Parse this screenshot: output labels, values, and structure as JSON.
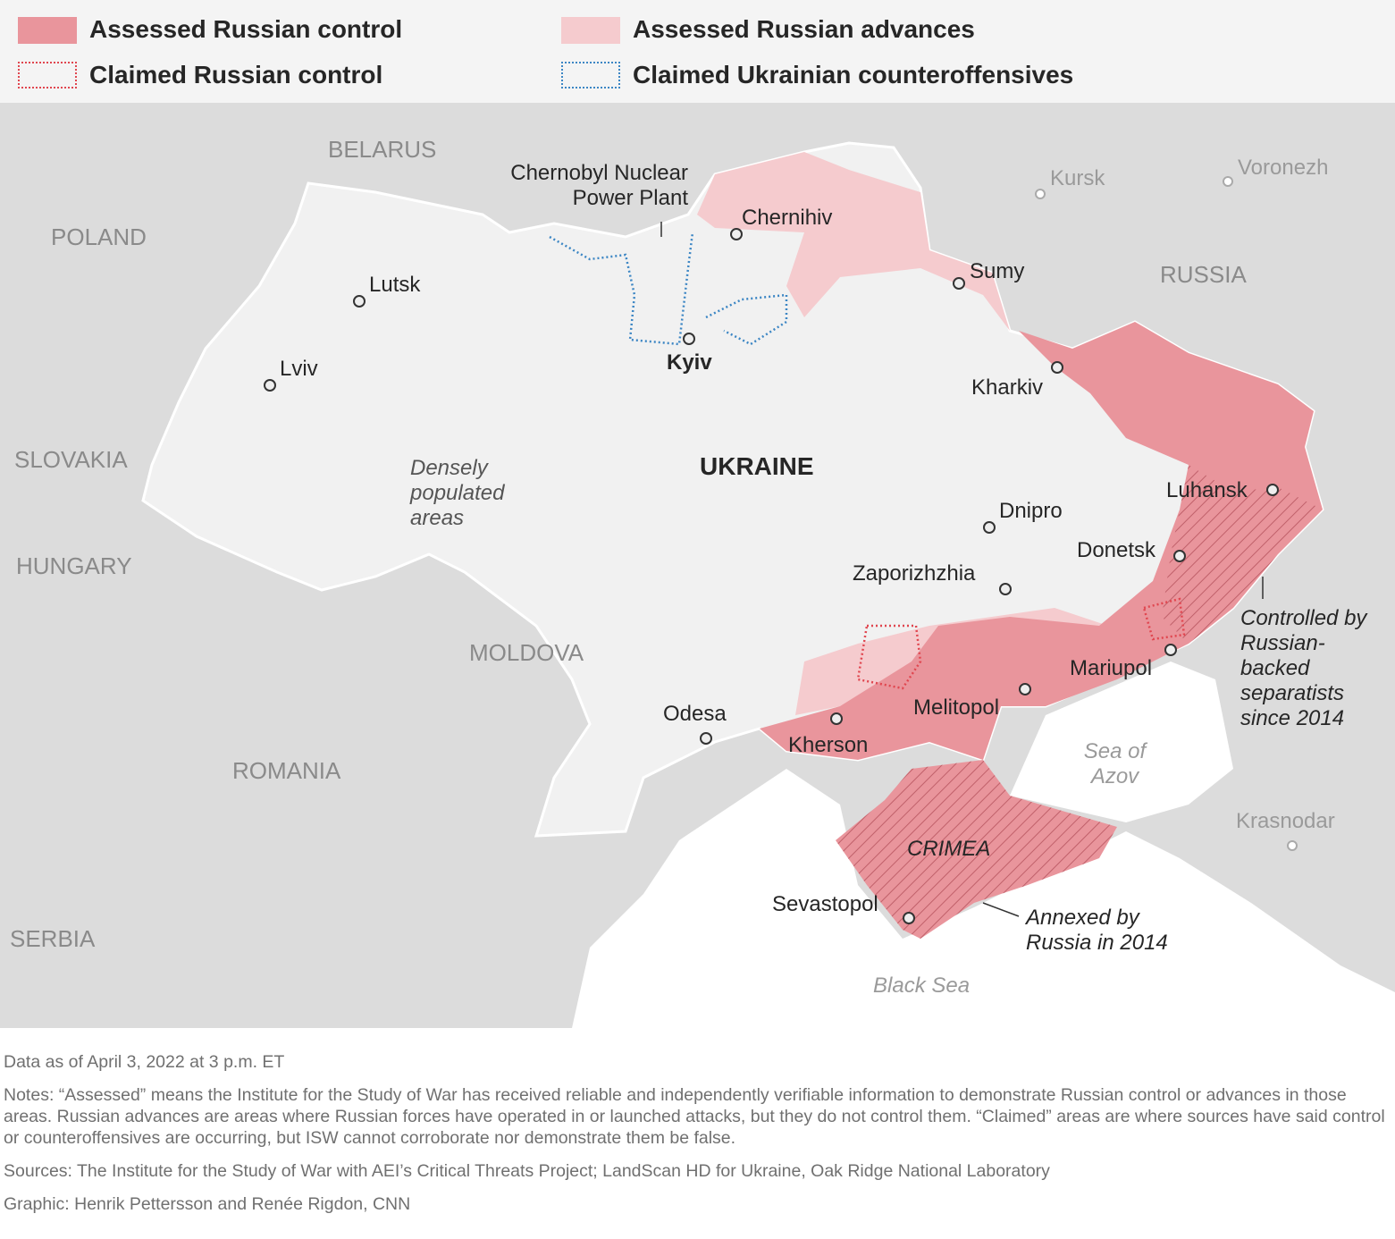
{
  "legend": [
    "Assessed Russian control",
    "Assessed Russian advances",
    "Claimed Russian control",
    "Claimed Ukrainian counteroffensives"
  ],
  "countries": [
    "BELARUS",
    "POLAND",
    "SLOVAKIA",
    "HUNGARY",
    "MOLDOVA",
    "ROMANIA",
    "SERBIA",
    "RUSSIA"
  ],
  "main_country": "UKRAINE",
  "cities": [
    "Chernihiv",
    "Lutsk",
    "Lviv",
    "Kyiv",
    "Sumy",
    "Kharkiv",
    "Luhansk",
    "Dnipro",
    "Donetsk",
    "Zaporizhzhia",
    "Mariupol",
    "Melitopol",
    "Odesa",
    "Kherson",
    "Sevastopol"
  ],
  "foreign_cities": [
    "Kursk",
    "Voronezh",
    "Krasnodar"
  ],
  "annotations": {
    "chernobyl": "Chernobyl Nuclear Power Plant",
    "dense": "Densely populated areas",
    "separatists": "Controlled by Russian-backed separatists since 2014",
    "annexed": "Annexed by Russia in 2014",
    "crimea": "CRIMEA"
  },
  "water": [
    "Sea of Azov",
    "Black Sea"
  ],
  "footer": {
    "date": "Data as of April 3, 2022 at 3 p.m. ET",
    "notes": "Notes: “Assessed” means the Institute for the Study of War has received reliable and independently verifiable information to demonstrate Russian control or advances in those areas. Russian advances are areas where Russian forces have operated in or launched attacks, but they do not control them. “Claimed” areas are where sources have said control or counteroffensives are occurring, but ISW cannot corroborate nor demonstrate them be false.",
    "sources": "Sources: The Institute for the Study of War with AEI’s Critical Threats Project; LandScan HD for Ukraine, Oak Ridge National Laboratory",
    "credit": "Graphic: Henrik Pettersson and Renée Rigdon, CNN"
  }
}
